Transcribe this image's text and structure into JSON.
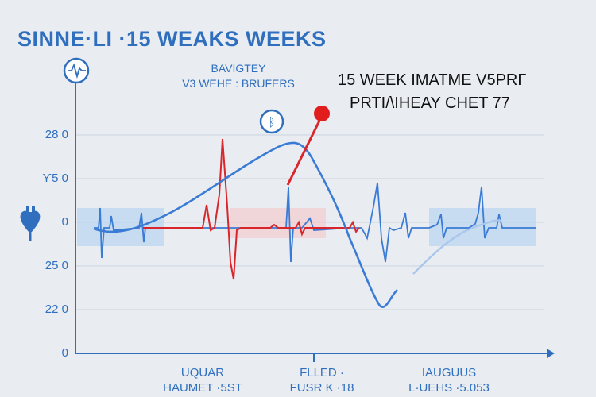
{
  "chart_data": {
    "type": "line",
    "title": "SINNE·LI ·15 WEAKS WEEKS",
    "subtitle_line1": "BAVIGTEY",
    "subtitle_line2": "V3 WEHE : BRUFERS",
    "annotation_line1": "15 WEEK IMATME V5PRΓ",
    "annotation_line2": "PRTI/\\IHEAY CHET 77",
    "badge_text": "ᛒ",
    "y_tick_labels": [
      "28  0",
      "Ƴ5  0",
      "0",
      "25  0",
      "22  0",
      "0"
    ],
    "x_labels": [
      {
        "line1": "UQUAR",
        "line2": "HAUMET ·5ST"
      },
      {
        "line1": "FLLED ·",
        "line2": "FUSR K ·18"
      },
      {
        "line1": "IAUGUUS",
        "line2": "L·UEHS ·5.053"
      }
    ],
    "grid": true,
    "series": [
      {
        "color": "#3a7bd5",
        "x": [
          0,
          10,
          20,
          30,
          40,
          46,
          50,
          55,
          60,
          68
        ],
        "y": [
          0,
          8,
          35,
          75,
          100,
          92,
          30,
          -40,
          -90,
          -70
        ]
      },
      {
        "color": "#d9262b",
        "x": [
          10,
          20,
          25,
          30,
          40
        ],
        "y": [
          0,
          0,
          90,
          -60,
          0
        ]
      },
      {
        "color": "#3a7bd5",
        "x": [
          0,
          10,
          45,
          55,
          65,
          70,
          80
        ],
        "y": [
          0,
          2,
          40,
          -40,
          70,
          -35,
          5
        ]
      }
    ],
    "colors": {
      "blue": "#2f6fbe",
      "red": "#d9262b",
      "ecg_blue": "#3a7bd5"
    }
  },
  "icons": {
    "heart_monitor": "heartbeat-circle-icon",
    "heart": "heart-icon",
    "badge": "info-badge-icon"
  }
}
